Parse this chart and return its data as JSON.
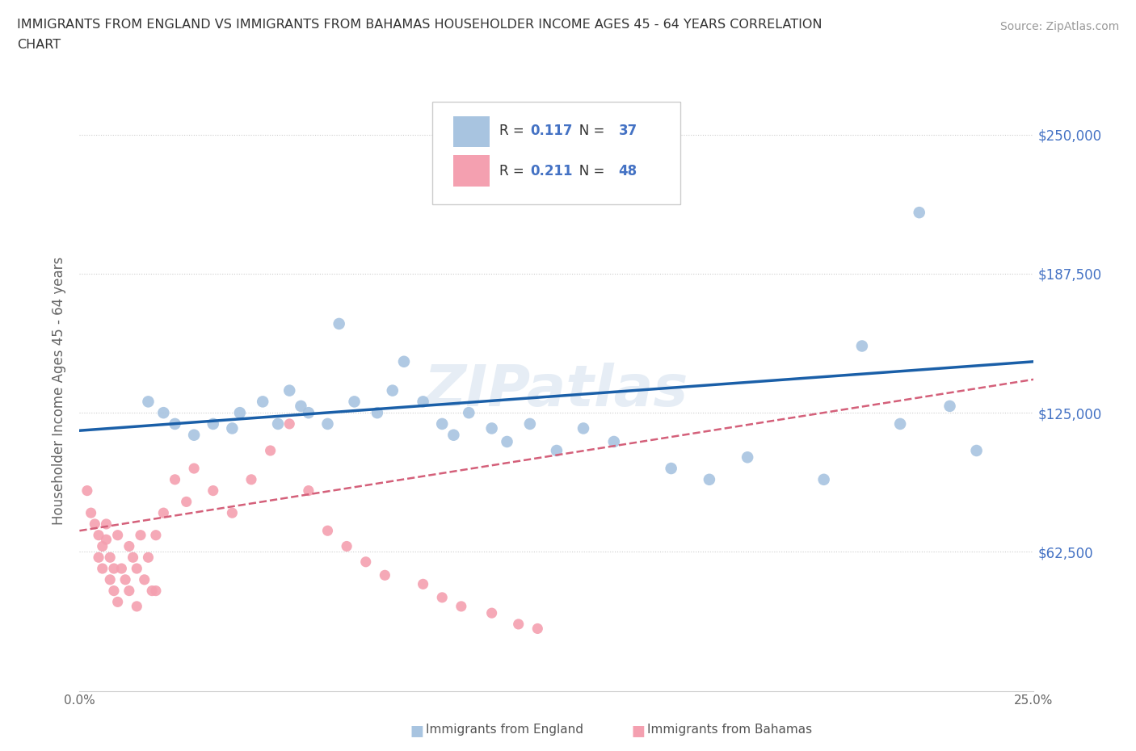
{
  "title_line1": "IMMIGRANTS FROM ENGLAND VS IMMIGRANTS FROM BAHAMAS HOUSEHOLDER INCOME AGES 45 - 64 YEARS CORRELATION",
  "title_line2": "CHART",
  "source_text": "Source: ZipAtlas.com",
  "ylabel": "Householder Income Ages 45 - 64 years",
  "xlim": [
    0.0,
    0.25
  ],
  "ylim": [
    0,
    270000
  ],
  "england_R": 0.117,
  "england_N": 37,
  "bahamas_R": 0.211,
  "bahamas_N": 48,
  "england_color": "#a8c4e0",
  "bahamas_color": "#f4a0b0",
  "england_line_color": "#1a5fa8",
  "bahamas_line_color": "#d4607a",
  "grid_color": "#cccccc",
  "legend_color": "#4472c4",
  "england_x": [
    0.018,
    0.022,
    0.025,
    0.03,
    0.035,
    0.04,
    0.042,
    0.048,
    0.052,
    0.055,
    0.058,
    0.06,
    0.065,
    0.068,
    0.072,
    0.078,
    0.082,
    0.085,
    0.09,
    0.095,
    0.098,
    0.102,
    0.108,
    0.112,
    0.118,
    0.125,
    0.132,
    0.14,
    0.155,
    0.165,
    0.175,
    0.195,
    0.205,
    0.215,
    0.22,
    0.228,
    0.235
  ],
  "england_y": [
    130000,
    125000,
    120000,
    115000,
    120000,
    118000,
    125000,
    130000,
    120000,
    135000,
    128000,
    125000,
    120000,
    165000,
    130000,
    125000,
    135000,
    148000,
    130000,
    120000,
    115000,
    125000,
    118000,
    112000,
    120000,
    108000,
    118000,
    112000,
    100000,
    95000,
    105000,
    95000,
    155000,
    120000,
    215000,
    128000,
    108000
  ],
  "bahamas_x": [
    0.002,
    0.003,
    0.004,
    0.005,
    0.005,
    0.006,
    0.006,
    0.007,
    0.007,
    0.008,
    0.008,
    0.009,
    0.009,
    0.01,
    0.01,
    0.011,
    0.012,
    0.013,
    0.013,
    0.014,
    0.015,
    0.016,
    0.017,
    0.018,
    0.019,
    0.02,
    0.022,
    0.025,
    0.028,
    0.03,
    0.035,
    0.04,
    0.045,
    0.05,
    0.055,
    0.06,
    0.065,
    0.07,
    0.075,
    0.08,
    0.09,
    0.095,
    0.1,
    0.108,
    0.115,
    0.12,
    0.015,
    0.02
  ],
  "bahamas_y": [
    90000,
    80000,
    75000,
    70000,
    60000,
    65000,
    55000,
    68000,
    75000,
    60000,
    50000,
    45000,
    55000,
    70000,
    40000,
    55000,
    50000,
    65000,
    45000,
    60000,
    55000,
    70000,
    50000,
    60000,
    45000,
    70000,
    80000,
    95000,
    85000,
    100000,
    90000,
    80000,
    95000,
    108000,
    120000,
    90000,
    72000,
    65000,
    58000,
    52000,
    48000,
    42000,
    38000,
    35000,
    30000,
    28000,
    38000,
    45000
  ]
}
